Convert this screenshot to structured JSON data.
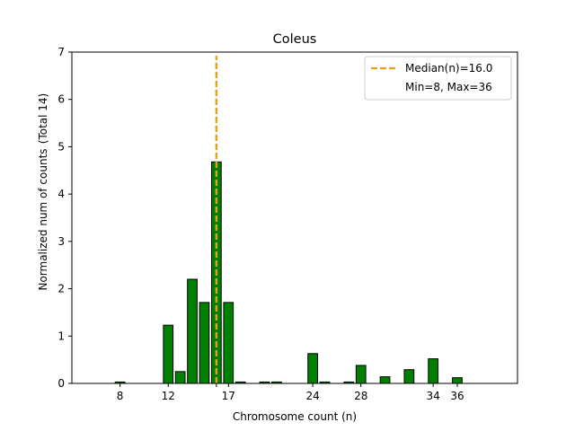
{
  "chart_data": {
    "type": "bar",
    "title": "Coleus",
    "xlabel": "Chromosome count (n)",
    "ylabel": "Normalized num of counts",
    "ylabel_note": "(Total 14)",
    "xlim": [
      4,
      41
    ],
    "ylim": [
      0,
      7
    ],
    "xticks": [
      8,
      12,
      16,
      17,
      24,
      28,
      34,
      36
    ],
    "xtick_labels": [
      "8",
      "12",
      "",
      "17",
      "24",
      "28",
      "34",
      "36"
    ],
    "yticks": [
      0,
      1,
      2,
      3,
      4,
      5,
      6,
      7
    ],
    "bar_color": "#008000",
    "bar_edge_color": "#000000",
    "bars": [
      {
        "x": 8,
        "value": 0.03
      },
      {
        "x": 12,
        "value": 1.23
      },
      {
        "x": 13,
        "value": 0.25
      },
      {
        "x": 14,
        "value": 2.2
      },
      {
        "x": 15,
        "value": 1.71
      },
      {
        "x": 16,
        "value": 4.68
      },
      {
        "x": 17,
        "value": 1.71
      },
      {
        "x": 18,
        "value": 0.03
      },
      {
        "x": 20,
        "value": 0.03
      },
      {
        "x": 21,
        "value": 0.03
      },
      {
        "x": 24,
        "value": 0.63
      },
      {
        "x": 25,
        "value": 0.03
      },
      {
        "x": 27,
        "value": 0.03
      },
      {
        "x": 28,
        "value": 0.38
      },
      {
        "x": 30,
        "value": 0.14
      },
      {
        "x": 32,
        "value": 0.29
      },
      {
        "x": 34,
        "value": 0.52
      },
      {
        "x": 36,
        "value": 0.12
      }
    ],
    "median": {
      "value": 16.0,
      "color": "#E5A11C"
    },
    "legend": {
      "placement": "top-right",
      "entries": [
        "Median(n)=16.0",
        "Min=8, Max=36"
      ]
    }
  }
}
